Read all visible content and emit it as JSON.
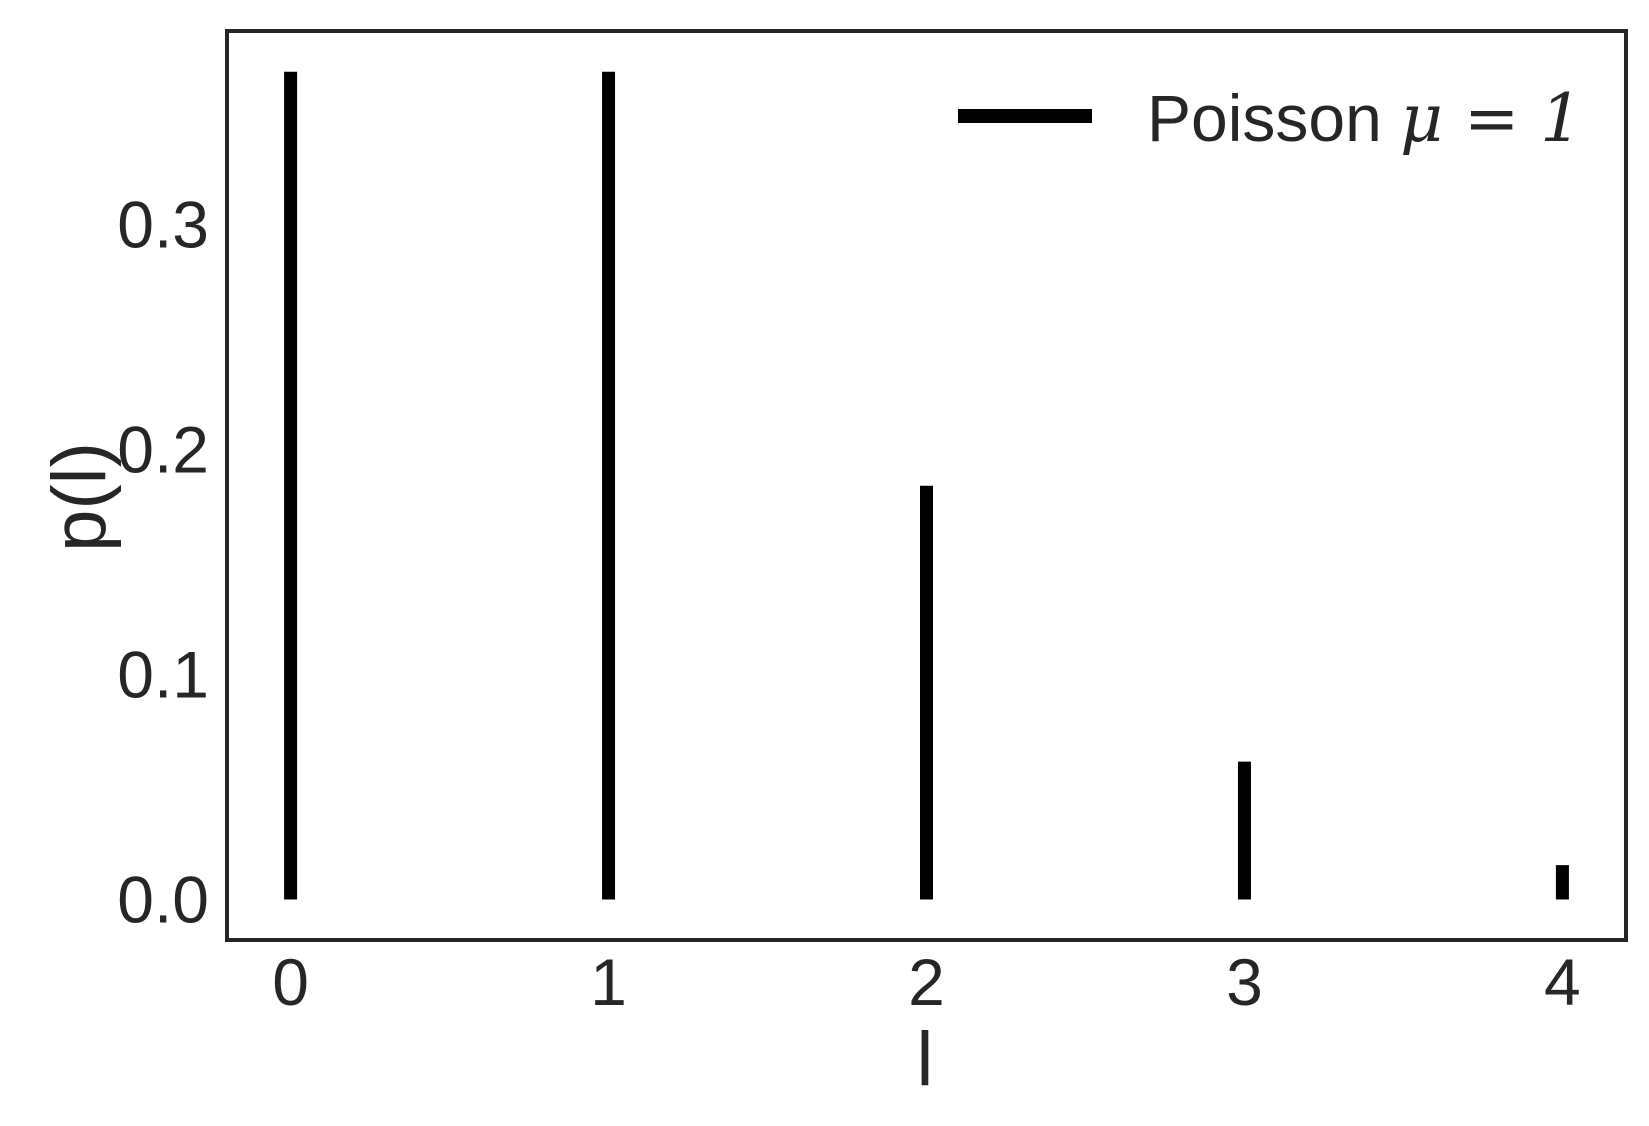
{
  "chart_data": {
    "type": "bar",
    "style": "vertical-lines",
    "x": [
      0,
      1,
      2,
      3,
      4
    ],
    "series": [
      {
        "name": "Poisson μ = 1",
        "name_prefix": "Poisson ",
        "name_math": "μ = 1",
        "values": [
          0.3679,
          0.3679,
          0.1839,
          0.0613,
          0.0153
        ],
        "color": "#000000"
      }
    ],
    "xticks": [
      "0",
      "1",
      "2",
      "3",
      "4"
    ],
    "yticks": [
      "0.0",
      "0.1",
      "0.2",
      "0.3"
    ],
    "xlabel": "l",
    "ylabel": "p(l)",
    "xlim": [
      -0.2,
      4.2
    ],
    "ylim": [
      -0.018,
      0.386
    ],
    "grid": false,
    "legend_position": "top-right",
    "frame_color": "#262626"
  }
}
